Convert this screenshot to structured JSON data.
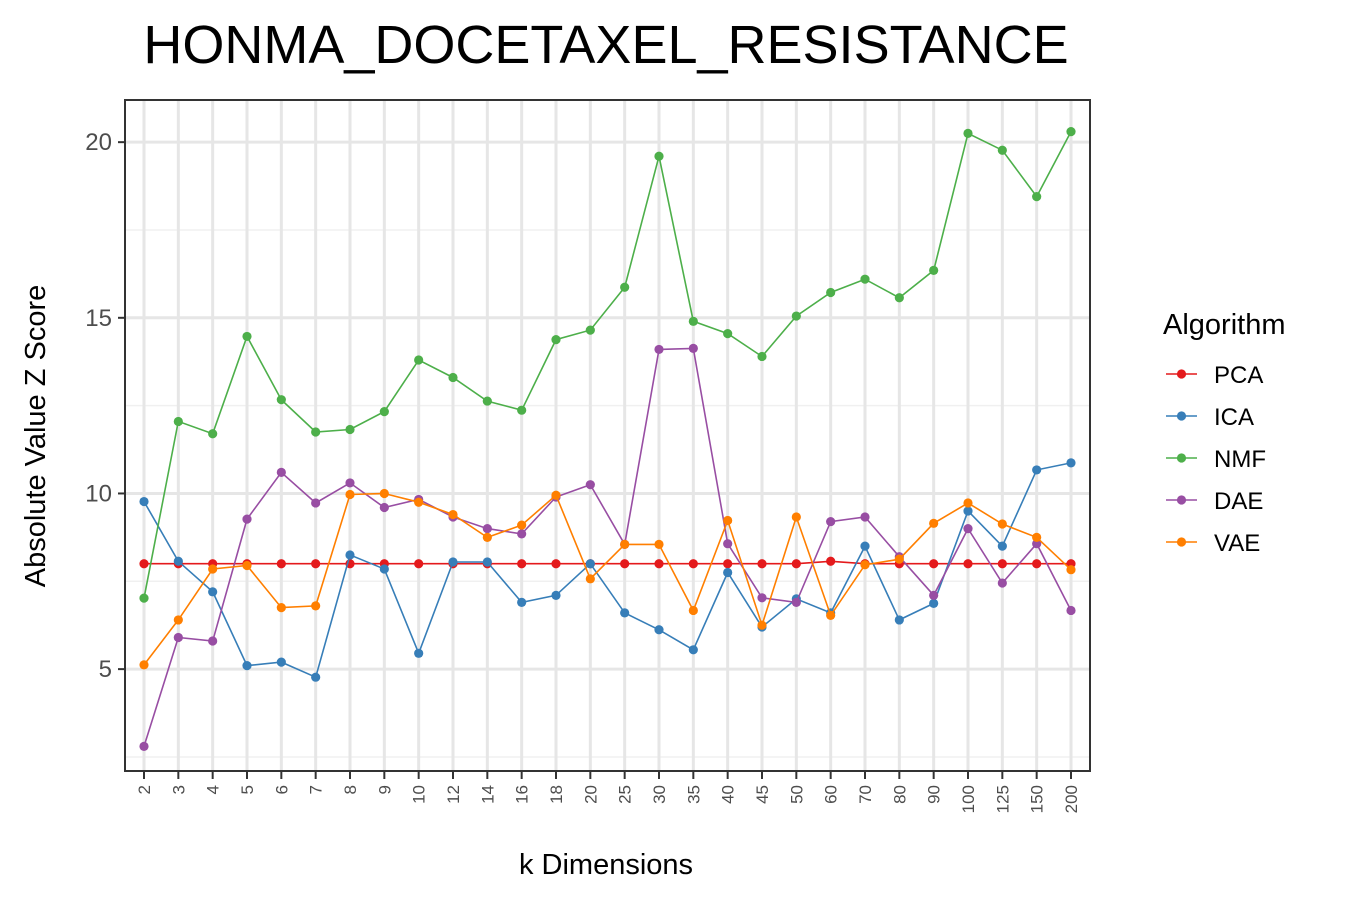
{
  "chart_data": {
    "type": "line",
    "title": "HONMA_DOCETAXEL_RESISTANCE",
    "xlabel": "k Dimensions",
    "ylabel": "Absolute Value Z Score",
    "categories": [
      "2",
      "3",
      "4",
      "5",
      "6",
      "7",
      "8",
      "9",
      "10",
      "12",
      "14",
      "16",
      "18",
      "20",
      "25",
      "30",
      "35",
      "40",
      "45",
      "50",
      "60",
      "70",
      "80",
      "90",
      "100",
      "125",
      "150",
      "200"
    ],
    "y_ticks": [
      5,
      10,
      15,
      20
    ],
    "ylim": [
      2.1,
      21.2
    ],
    "grid": true,
    "legend_title": "Algorithm",
    "legend_position": "right",
    "series": [
      {
        "name": "PCA",
        "color": "#E41A1C",
        "values": [
          8.0,
          8.0,
          8.0,
          8.0,
          8.0,
          8.0,
          8.0,
          8.0,
          8.0,
          8.0,
          8.0,
          8.0,
          8.0,
          8.0,
          8.0,
          8.0,
          8.0,
          8.0,
          8.0,
          8.0,
          8.07,
          8.0,
          8.0,
          8.0,
          8.0,
          8.0,
          8.0,
          8.0
        ]
      },
      {
        "name": "ICA",
        "color": "#377EB8",
        "values": [
          9.77,
          8.07,
          7.2,
          5.1,
          5.2,
          4.77,
          8.25,
          7.85,
          5.45,
          8.05,
          8.05,
          6.9,
          7.1,
          8.0,
          6.6,
          6.12,
          5.55,
          7.75,
          6.2,
          7.0,
          6.6,
          8.5,
          6.4,
          6.87,
          9.5,
          8.5,
          10.67,
          10.87
        ]
      },
      {
        "name": "NMF",
        "color": "#4DAF4A",
        "values": [
          7.02,
          12.05,
          11.7,
          14.47,
          12.67,
          11.75,
          11.82,
          12.33,
          13.8,
          13.3,
          12.63,
          12.37,
          14.38,
          14.65,
          15.87,
          19.6,
          14.9,
          14.55,
          13.9,
          15.05,
          15.72,
          16.1,
          15.57,
          16.35,
          20.25,
          19.77,
          18.45,
          20.3
        ]
      },
      {
        "name": "DAE",
        "color": "#984EA3",
        "values": [
          2.8,
          5.9,
          5.8,
          9.27,
          10.6,
          9.73,
          10.3,
          9.6,
          9.83,
          9.33,
          9.0,
          8.85,
          9.9,
          10.25,
          8.55,
          14.1,
          14.13,
          8.57,
          7.03,
          6.9,
          9.2,
          9.33,
          8.2,
          7.1,
          9.0,
          7.45,
          8.57,
          6.67
        ]
      },
      {
        "name": "VAE",
        "color": "#FF7F00",
        "values": [
          5.12,
          6.4,
          7.85,
          7.95,
          6.75,
          6.8,
          9.97,
          10.0,
          9.75,
          9.4,
          8.75,
          9.1,
          9.95,
          7.57,
          8.55,
          8.55,
          6.67,
          9.23,
          6.25,
          9.33,
          6.53,
          7.97,
          8.13,
          9.15,
          9.73,
          9.13,
          8.75,
          7.83
        ]
      }
    ]
  }
}
